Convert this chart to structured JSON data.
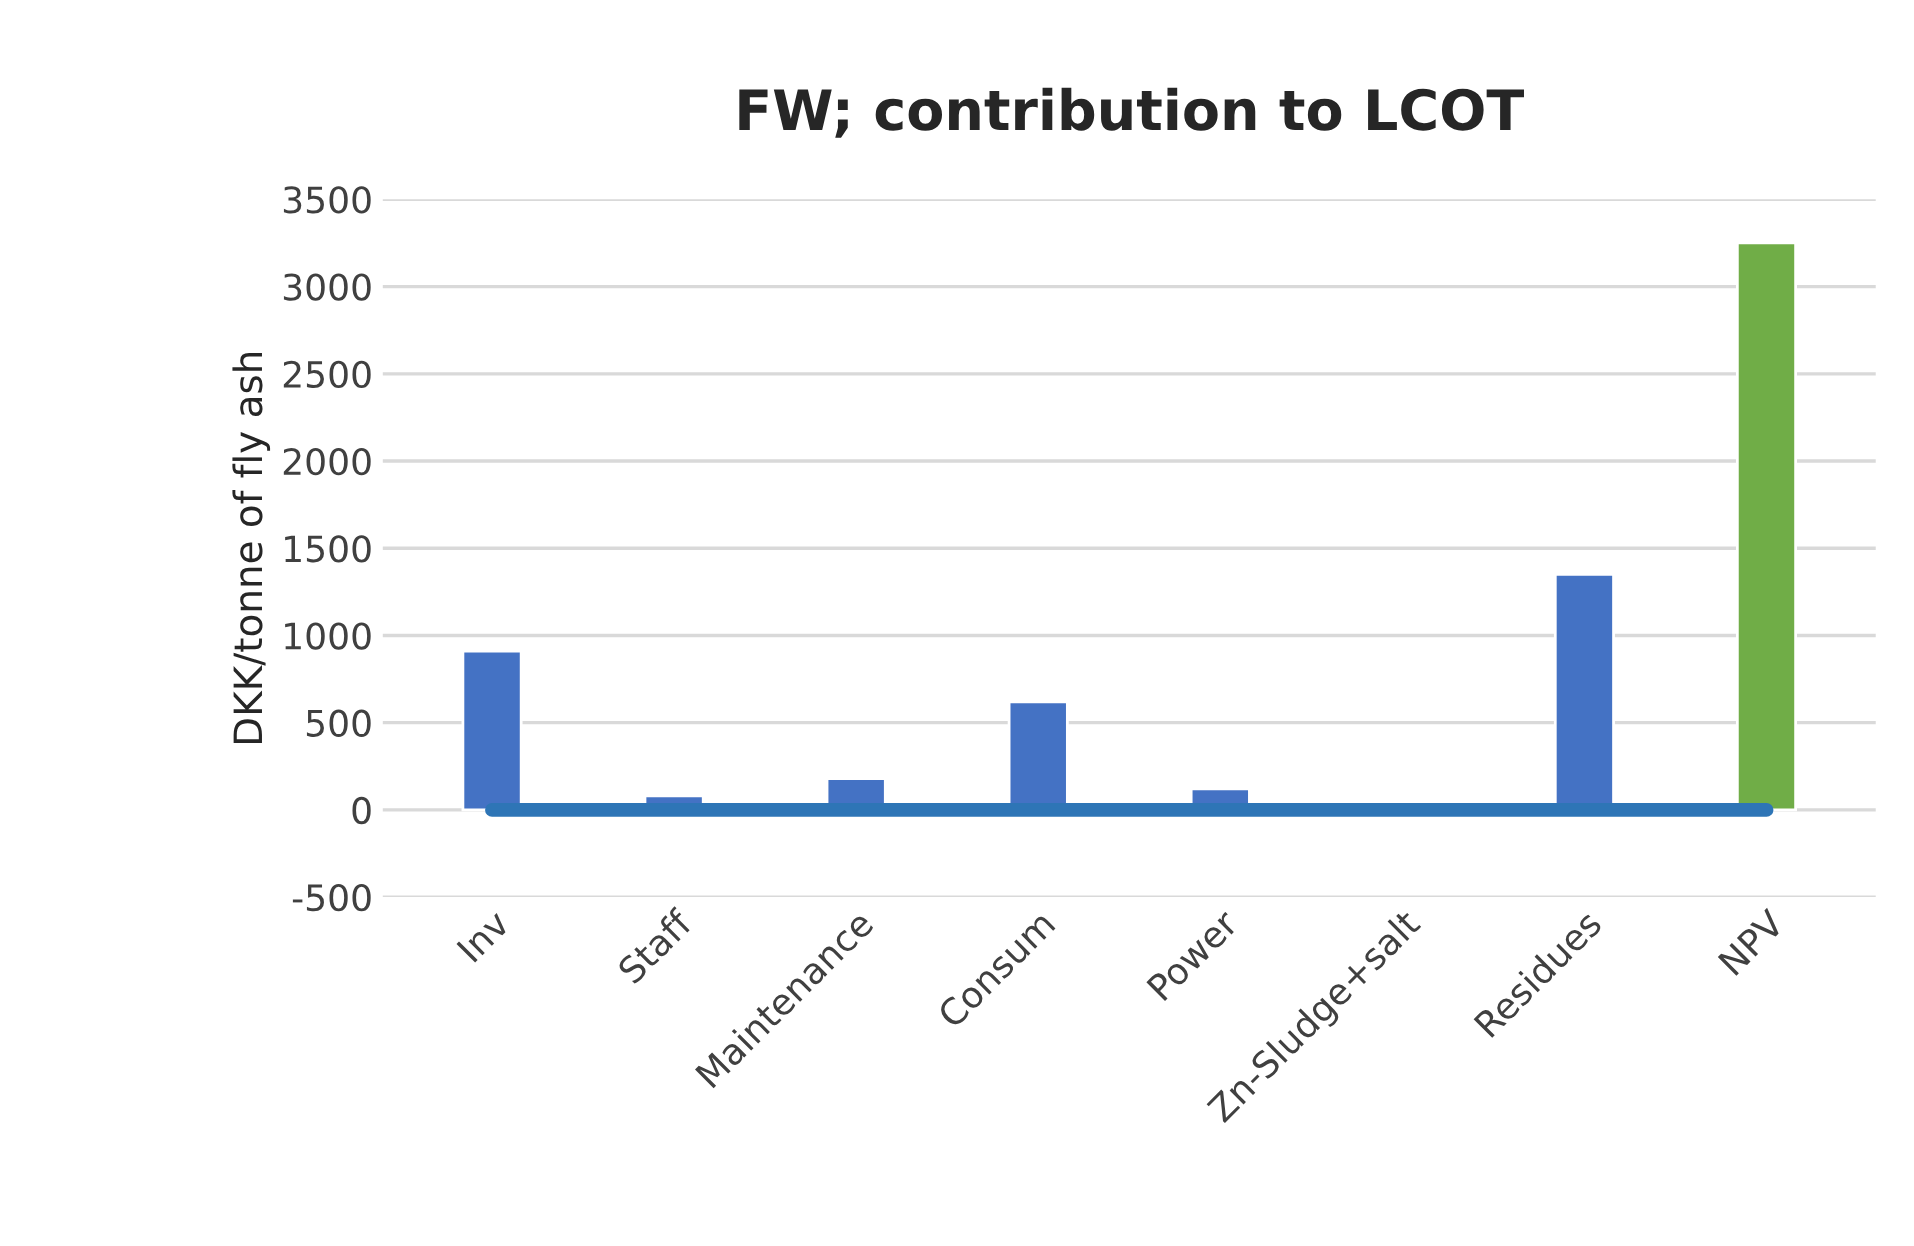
{
  "chart_data": {
    "type": "bar",
    "title": "FW; contribution to LCOT",
    "ylabel": "DKK/tonne of fly ash",
    "categories": [
      "Inv",
      "Staff",
      "Maintenance",
      "Consum",
      "Power",
      "Zn-Sludge+salt",
      "Residues",
      "NPV"
    ],
    "series": [
      {
        "colors": [
          "#4472c4",
          "#4472c4",
          "#4472c4",
          "#4472c4",
          "#4472c4",
          "#4472c4",
          "#4472c4",
          "#70ad47"
        ],
        "values": [
          910,
          80,
          180,
          620,
          120,
          null,
          1350,
          3250
        ]
      },
      {
        "type": "line",
        "color": "#2e75b6",
        "values": [
          0,
          0,
          0,
          0,
          0,
          0,
          0,
          0
        ]
      }
    ],
    "ylim": [
      -500,
      3500
    ],
    "yticks": [
      -500,
      0,
      500,
      1000,
      1500,
      2000,
      2500,
      3000,
      3500
    ],
    "grid": "y",
    "legend": false
  }
}
